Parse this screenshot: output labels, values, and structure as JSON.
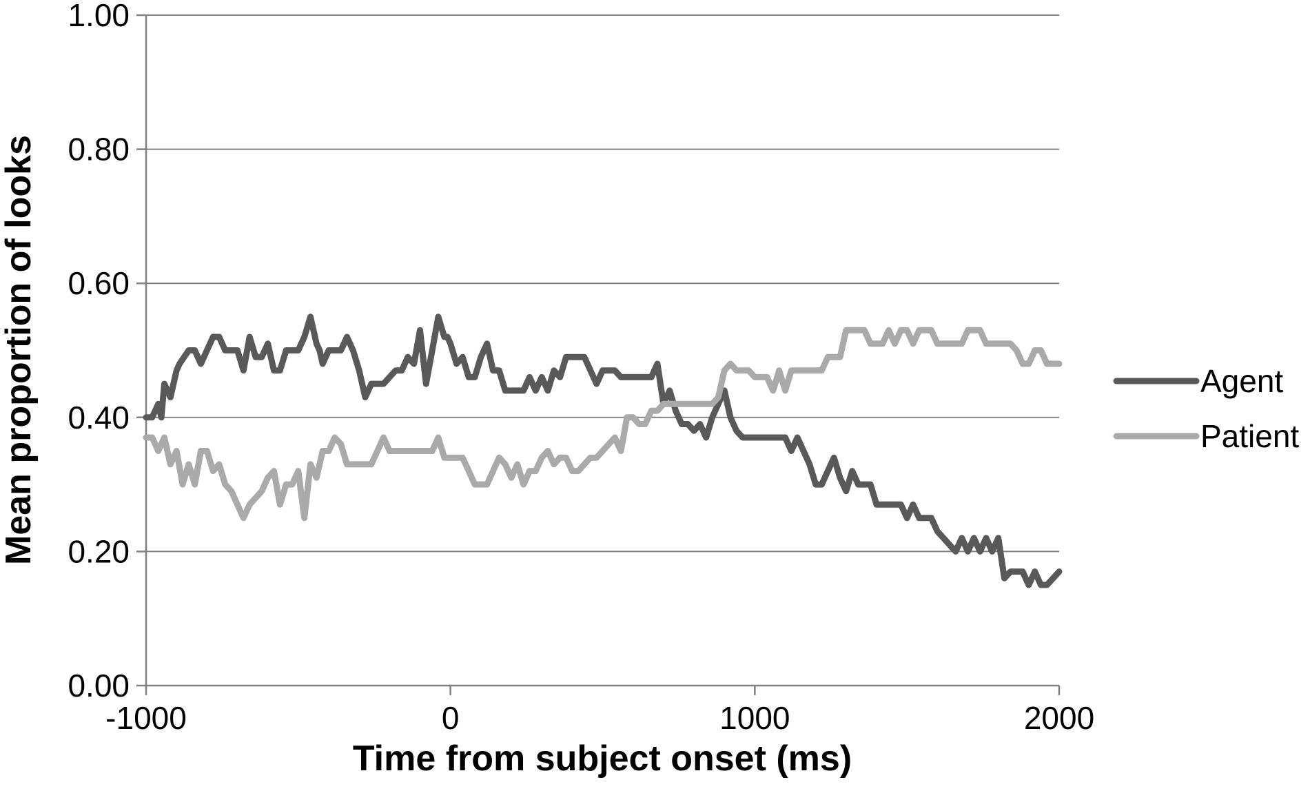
{
  "chart_data": {
    "type": "line",
    "title": "",
    "xlabel": "Time from subject onset  (ms)",
    "ylabel": "Mean proportion of looks",
    "xlim": [
      -1000,
      2000
    ],
    "ylim": [
      0,
      1
    ],
    "xticks": [
      -1000,
      0,
      1000,
      2000
    ],
    "xtick_labels": [
      "-1000",
      "0",
      "1000",
      "2000"
    ],
    "yticks": [
      0,
      0.2,
      0.4,
      0.6,
      0.8,
      1.0
    ],
    "ytick_labels": [
      "0.00",
      "0.20",
      "0.40",
      "0.60",
      "0.80",
      "1.00"
    ],
    "grid": "horizontal",
    "legend_position": "right",
    "series": [
      {
        "name": "Agent",
        "color": "#595959",
        "x": [
          -1000,
          -980,
          -960,
          -950,
          -940,
          -920,
          -900,
          -890,
          -860,
          -840,
          -820,
          -800,
          -780,
          -760,
          -740,
          -700,
          -680,
          -660,
          -640,
          -620,
          -600,
          -580,
          -560,
          -540,
          -520,
          -500,
          -480,
          -460,
          -440,
          -430,
          -420,
          -400,
          -380,
          -360,
          -340,
          -320,
          -300,
          -280,
          -260,
          -240,
          -220,
          -200,
          -180,
          -160,
          -140,
          -120,
          -100,
          -80,
          -60,
          -40,
          -20,
          -10,
          0,
          20,
          40,
          60,
          80,
          100,
          120,
          140,
          160,
          180,
          200,
          220,
          240,
          260,
          280,
          300,
          320,
          340,
          360,
          380,
          400,
          420,
          440,
          460,
          480,
          500,
          520,
          540,
          560,
          580,
          600,
          620,
          640,
          660,
          680,
          700,
          720,
          740,
          760,
          780,
          800,
          820,
          840,
          860,
          880,
          900,
          920,
          940,
          960,
          980,
          1000,
          1020,
          1040,
          1060,
          1080,
          1100,
          1120,
          1140,
          1160,
          1180,
          1200,
          1220,
          1240,
          1260,
          1280,
          1300,
          1320,
          1340,
          1360,
          1380,
          1400,
          1420,
          1440,
          1460,
          1480,
          1500,
          1520,
          1540,
          1560,
          1580,
          1600,
          1620,
          1640,
          1660,
          1680,
          1700,
          1720,
          1740,
          1760,
          1780,
          1800,
          1820,
          1840,
          1860,
          1880,
          1900,
          1920,
          1940,
          1960,
          1980,
          2000
        ],
        "y": [
          0.4,
          0.4,
          0.42,
          0.4,
          0.45,
          0.43,
          0.47,
          0.48,
          0.5,
          0.5,
          0.48,
          0.5,
          0.52,
          0.52,
          0.5,
          0.5,
          0.47,
          0.52,
          0.49,
          0.49,
          0.51,
          0.47,
          0.47,
          0.5,
          0.5,
          0.5,
          0.52,
          0.55,
          0.51,
          0.5,
          0.48,
          0.5,
          0.5,
          0.5,
          0.52,
          0.5,
          0.47,
          0.43,
          0.45,
          0.45,
          0.45,
          0.46,
          0.47,
          0.47,
          0.49,
          0.48,
          0.53,
          0.45,
          0.5,
          0.55,
          0.52,
          0.52,
          0.51,
          0.48,
          0.49,
          0.46,
          0.46,
          0.49,
          0.51,
          0.47,
          0.47,
          0.44,
          0.44,
          0.44,
          0.44,
          0.46,
          0.44,
          0.46,
          0.44,
          0.47,
          0.46,
          0.49,
          0.49,
          0.49,
          0.49,
          0.47,
          0.45,
          0.47,
          0.47,
          0.47,
          0.46,
          0.46,
          0.46,
          0.46,
          0.46,
          0.46,
          0.48,
          0.42,
          0.44,
          0.41,
          0.39,
          0.39,
          0.38,
          0.39,
          0.37,
          0.4,
          0.42,
          0.44,
          0.4,
          0.38,
          0.37,
          0.37,
          0.37,
          0.37,
          0.37,
          0.37,
          0.37,
          0.37,
          0.35,
          0.37,
          0.35,
          0.33,
          0.3,
          0.3,
          0.32,
          0.34,
          0.31,
          0.29,
          0.32,
          0.3,
          0.3,
          0.3,
          0.27,
          0.27,
          0.27,
          0.27,
          0.27,
          0.25,
          0.27,
          0.25,
          0.25,
          0.25,
          0.23,
          0.22,
          0.21,
          0.2,
          0.22,
          0.2,
          0.22,
          0.2,
          0.22,
          0.2,
          0.22,
          0.16,
          0.17,
          0.17,
          0.17,
          0.15,
          0.17,
          0.15,
          0.15,
          0.16,
          0.17
        ]
      },
      {
        "name": "Patient",
        "color": "#aaaaaa",
        "x": [
          -1000,
          -980,
          -960,
          -940,
          -920,
          -900,
          -880,
          -860,
          -840,
          -820,
          -800,
          -780,
          -760,
          -740,
          -720,
          -700,
          -680,
          -660,
          -640,
          -620,
          -600,
          -580,
          -560,
          -540,
          -520,
          -500,
          -480,
          -460,
          -440,
          -420,
          -400,
          -380,
          -360,
          -340,
          -320,
          -300,
          -280,
          -260,
          -240,
          -220,
          -200,
          -180,
          -160,
          -140,
          -120,
          -100,
          -80,
          -60,
          -40,
          -20,
          0,
          20,
          40,
          60,
          80,
          100,
          120,
          140,
          160,
          180,
          200,
          220,
          240,
          260,
          280,
          300,
          320,
          340,
          360,
          380,
          400,
          420,
          440,
          460,
          480,
          500,
          520,
          540,
          560,
          580,
          600,
          620,
          640,
          660,
          680,
          700,
          720,
          740,
          760,
          780,
          800,
          820,
          840,
          860,
          880,
          900,
          920,
          940,
          960,
          980,
          1000,
          1020,
          1040,
          1060,
          1080,
          1100,
          1120,
          1140,
          1160,
          1180,
          1200,
          1220,
          1240,
          1260,
          1280,
          1300,
          1320,
          1340,
          1360,
          1380,
          1400,
          1420,
          1440,
          1460,
          1480,
          1500,
          1520,
          1540,
          1560,
          1580,
          1600,
          1620,
          1640,
          1660,
          1680,
          1700,
          1720,
          1740,
          1760,
          1780,
          1800,
          1820,
          1840,
          1860,
          1880,
          1900,
          1920,
          1940,
          1960,
          1980,
          2000
        ],
        "y": [
          0.37,
          0.37,
          0.35,
          0.37,
          0.33,
          0.35,
          0.3,
          0.33,
          0.3,
          0.35,
          0.35,
          0.32,
          0.33,
          0.3,
          0.29,
          0.27,
          0.25,
          0.27,
          0.28,
          0.29,
          0.31,
          0.32,
          0.27,
          0.3,
          0.3,
          0.32,
          0.25,
          0.33,
          0.31,
          0.35,
          0.35,
          0.37,
          0.36,
          0.33,
          0.33,
          0.33,
          0.33,
          0.33,
          0.35,
          0.37,
          0.35,
          0.35,
          0.35,
          0.35,
          0.35,
          0.35,
          0.35,
          0.35,
          0.37,
          0.34,
          0.34,
          0.34,
          0.34,
          0.32,
          0.3,
          0.3,
          0.3,
          0.32,
          0.34,
          0.33,
          0.31,
          0.33,
          0.3,
          0.32,
          0.32,
          0.34,
          0.35,
          0.33,
          0.34,
          0.34,
          0.32,
          0.32,
          0.33,
          0.34,
          0.34,
          0.35,
          0.36,
          0.37,
          0.35,
          0.4,
          0.4,
          0.39,
          0.39,
          0.41,
          0.41,
          0.42,
          0.42,
          0.42,
          0.42,
          0.42,
          0.42,
          0.42,
          0.42,
          0.42,
          0.43,
          0.47,
          0.48,
          0.47,
          0.47,
          0.47,
          0.46,
          0.46,
          0.46,
          0.44,
          0.47,
          0.44,
          0.47,
          0.47,
          0.47,
          0.47,
          0.47,
          0.47,
          0.49,
          0.49,
          0.49,
          0.53,
          0.53,
          0.53,
          0.53,
          0.51,
          0.51,
          0.51,
          0.53,
          0.51,
          0.53,
          0.53,
          0.51,
          0.53,
          0.53,
          0.53,
          0.51,
          0.51,
          0.51,
          0.51,
          0.51,
          0.53,
          0.53,
          0.53,
          0.51,
          0.51,
          0.51,
          0.51,
          0.51,
          0.5,
          0.48,
          0.48,
          0.5,
          0.5,
          0.48,
          0.48,
          0.48
        ]
      }
    ]
  }
}
